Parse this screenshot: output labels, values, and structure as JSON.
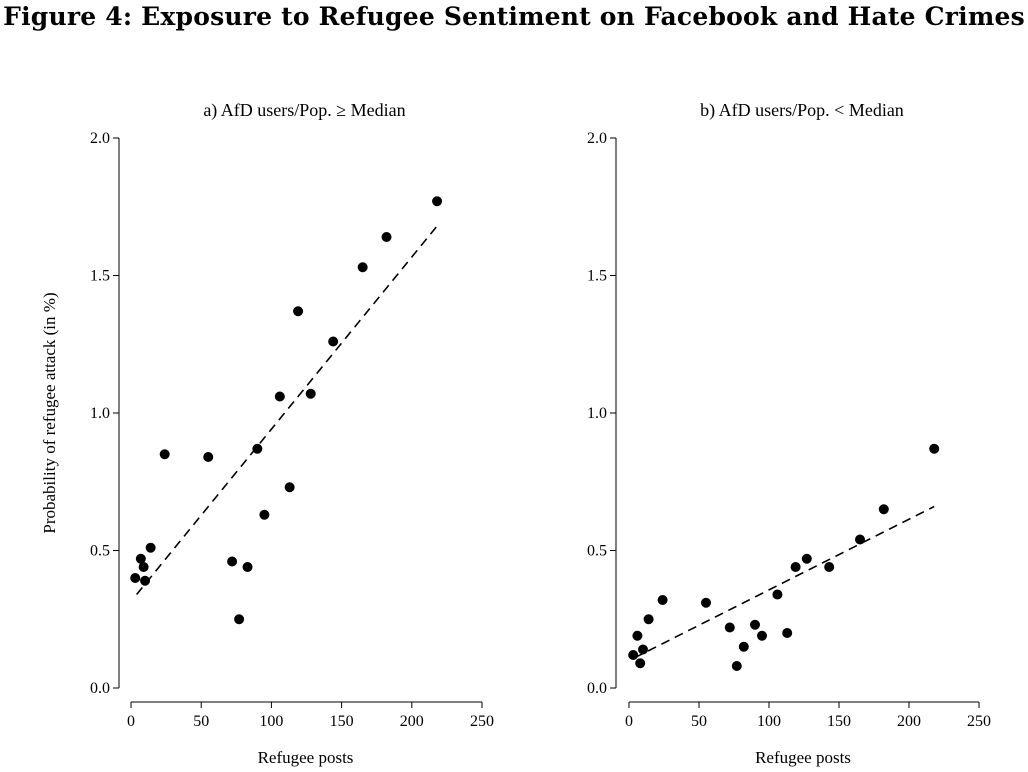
{
  "figure_title": "Figure 4: Exposure to Refugee Sentiment on Facebook and Hate Crimes",
  "shared_ylabel": "Probability of refugee attack (in %)",
  "chart_data": [
    {
      "type": "scatter",
      "title": "a) AfD users/Pop. ≥ Median",
      "xlabel": "Refugee posts",
      "ylabel": "Probability of refugee attack (in %)",
      "xlim": [
        0,
        250
      ],
      "ylim": [
        0,
        2.0
      ],
      "x_ticks": [
        "0",
        "50",
        "100",
        "150",
        "200",
        "250"
      ],
      "y_ticks": [
        "0.0",
        "0.5",
        "1.0",
        "1.5",
        "2.0"
      ],
      "grid": false,
      "points": [
        {
          "x": 3,
          "y": 0.4
        },
        {
          "x": 7,
          "y": 0.47
        },
        {
          "x": 9,
          "y": 0.44
        },
        {
          "x": 10,
          "y": 0.39
        },
        {
          "x": 14,
          "y": 0.51
        },
        {
          "x": 24,
          "y": 0.85
        },
        {
          "x": 55,
          "y": 0.84
        },
        {
          "x": 72,
          "y": 0.46
        },
        {
          "x": 77,
          "y": 0.25
        },
        {
          "x": 83,
          "y": 0.44
        },
        {
          "x": 90,
          "y": 0.87
        },
        {
          "x": 95,
          "y": 0.63
        },
        {
          "x": 106,
          "y": 1.06
        },
        {
          "x": 113,
          "y": 0.73
        },
        {
          "x": 119,
          "y": 1.37
        },
        {
          "x": 128,
          "y": 1.07
        },
        {
          "x": 144,
          "y": 1.26
        },
        {
          "x": 165,
          "y": 1.53
        },
        {
          "x": 182,
          "y": 1.64
        },
        {
          "x": 218,
          "y": 1.77
        }
      ],
      "fit_line": {
        "x": [
          4,
          218
        ],
        "y": [
          0.34,
          1.68
        ],
        "style": "dashed"
      }
    },
    {
      "type": "scatter",
      "title": "b) AfD users/Pop. < Median",
      "xlabel": "Refugee posts",
      "ylabel": "",
      "xlim": [
        0,
        250
      ],
      "ylim": [
        0,
        2.0
      ],
      "x_ticks": [
        "0",
        "50",
        "100",
        "150",
        "200",
        "250"
      ],
      "y_ticks": [
        "0.0",
        "0.5",
        "1.0",
        "1.5",
        "2.0"
      ],
      "grid": false,
      "points": [
        {
          "x": 3,
          "y": 0.12
        },
        {
          "x": 6,
          "y": 0.19
        },
        {
          "x": 8,
          "y": 0.09
        },
        {
          "x": 10,
          "y": 0.14
        },
        {
          "x": 14,
          "y": 0.25
        },
        {
          "x": 24,
          "y": 0.32
        },
        {
          "x": 55,
          "y": 0.31
        },
        {
          "x": 72,
          "y": 0.22
        },
        {
          "x": 77,
          "y": 0.08
        },
        {
          "x": 82,
          "y": 0.15
        },
        {
          "x": 90,
          "y": 0.23
        },
        {
          "x": 95,
          "y": 0.19
        },
        {
          "x": 106,
          "y": 0.34
        },
        {
          "x": 113,
          "y": 0.2
        },
        {
          "x": 119,
          "y": 0.44
        },
        {
          "x": 127,
          "y": 0.47
        },
        {
          "x": 143,
          "y": 0.44
        },
        {
          "x": 165,
          "y": 0.54
        },
        {
          "x": 182,
          "y": 0.65
        },
        {
          "x": 218,
          "y": 0.87
        }
      ],
      "fit_line": {
        "x": [
          4,
          218
        ],
        "y": [
          0.11,
          0.66
        ],
        "style": "dashed"
      }
    }
  ]
}
